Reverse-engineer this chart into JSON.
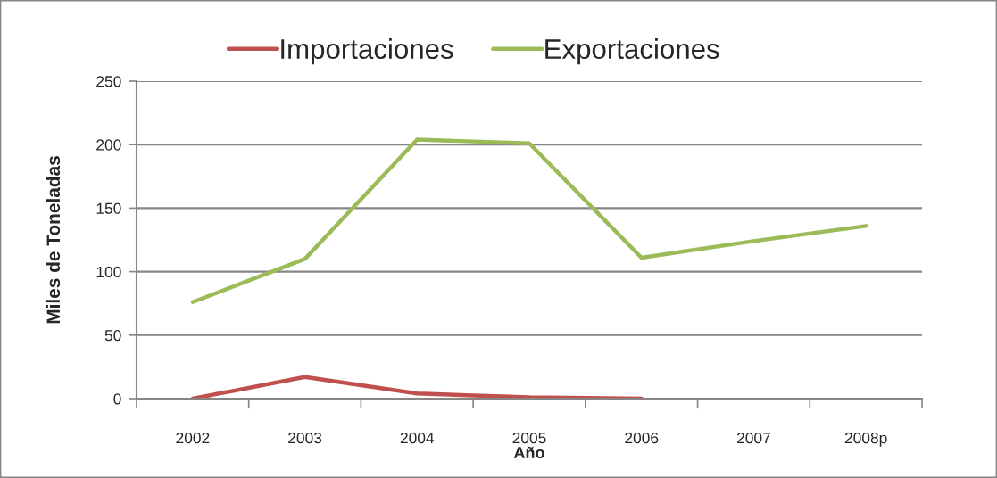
{
  "chart_data": {
    "type": "line",
    "xlabel": "Año",
    "ylabel": "Miles de Toneladas",
    "categories": [
      "2002",
      "2003",
      "2004",
      "2005",
      "2006",
      "2007",
      "2008p"
    ],
    "series": [
      {
        "name": "Importaciones",
        "color": "#c0504d",
        "values": [
          0,
          17,
          4,
          1,
          0,
          null,
          null
        ]
      },
      {
        "name": "Exportaciones",
        "color": "#9bbb59",
        "values": [
          76,
          110,
          204,
          201,
          111,
          124,
          136
        ]
      }
    ],
    "ylim": [
      0,
      250
    ],
    "yticks": [
      0,
      50,
      100,
      150,
      200,
      250
    ],
    "grid": "y",
    "legend": "top",
    "marker": "none",
    "line_style": "solid"
  }
}
